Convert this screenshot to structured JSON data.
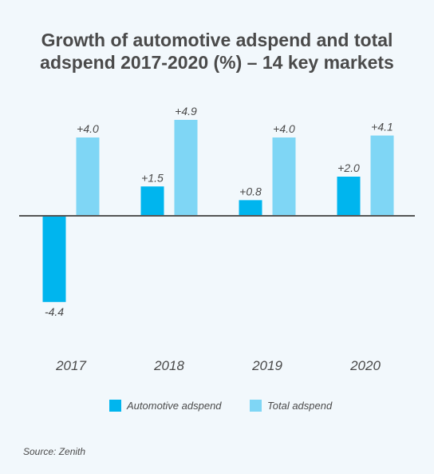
{
  "chart_data": {
    "type": "bar",
    "title_lines": [
      "Growth of automotive adspend and total",
      "adspend 2017-2020 (%) – 14 key markets"
    ],
    "categories": [
      "2017",
      "2018",
      "2019",
      "2020"
    ],
    "series": [
      {
        "name": "Automotive adspend",
        "color": "#00b5ee",
        "values": [
          -4.4,
          1.5,
          0.8,
          2.0
        ],
        "labels": [
          "-4.4",
          "+1.5",
          "+0.8",
          "+2.0"
        ]
      },
      {
        "name": "Total adspend",
        "color": "#7fd6f5",
        "values": [
          4.0,
          4.9,
          4.0,
          4.1
        ],
        "labels": [
          "+4.0",
          "+4.9",
          "+4.0",
          "+4.1"
        ]
      }
    ],
    "xlabel": "",
    "ylabel": "",
    "ylim": [
      -4.4,
      4.9
    ],
    "grid": false,
    "legend_position": "bottom"
  },
  "source": "Source: Zenith"
}
